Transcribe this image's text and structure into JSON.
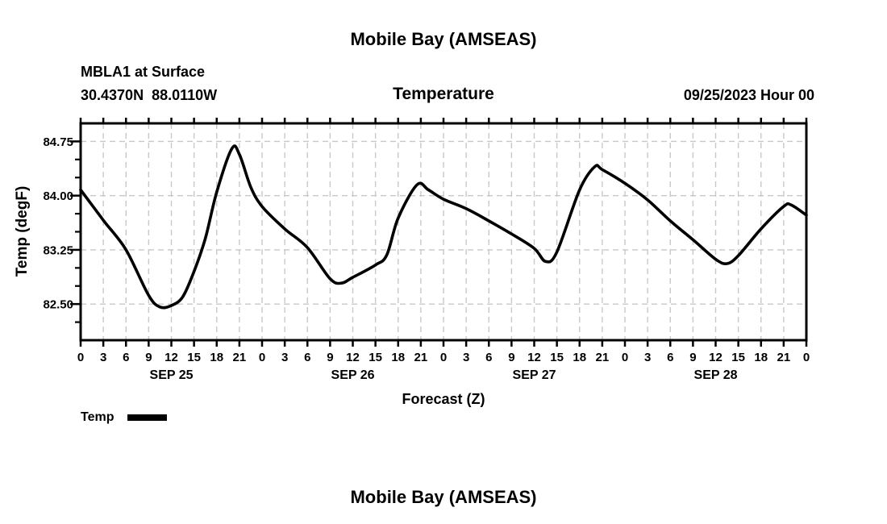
{
  "header": {
    "title": "Mobile Bay (AMSEAS)",
    "station_name": "MBLA1 at Surface",
    "station_coords": "30.4370N  88.0110W",
    "plot_title": "Temperature",
    "run_info": "09/25/2023 Hour 00"
  },
  "legend": {
    "label": "Temp",
    "swatch_color": "#000000"
  },
  "footer": {
    "next_plot_title": "Mobile Bay (AMSEAS)"
  },
  "chart_data": {
    "type": "line",
    "title": "Temperature",
    "xlabel": "Forecast (Z)",
    "ylabel": "Temp (degF)",
    "xlim_hours": [
      0,
      96
    ],
    "ylim": [
      82.0,
      85.0
    ],
    "grid": "dashed",
    "grid_color": "#c8c8c8",
    "line_color": "#000000",
    "axis_color": "#000000",
    "xticks": {
      "hours": [
        0,
        3,
        6,
        9,
        12,
        15,
        18,
        21,
        24,
        27,
        30,
        33,
        36,
        39,
        42,
        45,
        48,
        51,
        54,
        57,
        60,
        63,
        66,
        69,
        72,
        75,
        78,
        81,
        84,
        87,
        90,
        93,
        96
      ],
      "labels": [
        "0",
        "3",
        "6",
        "9",
        "12",
        "15",
        "18",
        "21",
        "0",
        "3",
        "6",
        "9",
        "12",
        "15",
        "18",
        "21",
        "0",
        "3",
        "6",
        "9",
        "12",
        "15",
        "18",
        "21",
        "0",
        "3",
        "6",
        "9",
        "12",
        "15",
        "18",
        "21",
        "0"
      ]
    },
    "day_labels": [
      {
        "label": "SEP 25",
        "hour": 12
      },
      {
        "label": "SEP 26",
        "hour": 36
      },
      {
        "label": "SEP 27",
        "hour": 60
      },
      {
        "label": "SEP 28",
        "hour": 84
      }
    ],
    "yticks_major": {
      "values": [
        82.5,
        83.25,
        84.0,
        84.75
      ],
      "labels": [
        "82.50",
        "83.25",
        "84.00",
        "84.75"
      ]
    },
    "yticks_minor": [
      82.25,
      82.75,
      83.0,
      83.5,
      83.75,
      84.25,
      84.5
    ],
    "legend_position": "bottom-left",
    "series": [
      {
        "name": "Temp",
        "points_hour_degF": [
          [
            0,
            84.08
          ],
          [
            3,
            83.66
          ],
          [
            6,
            83.25
          ],
          [
            9,
            82.62
          ],
          [
            10.5,
            82.46
          ],
          [
            12,
            82.48
          ],
          [
            13.5,
            82.6
          ],
          [
            15,
            82.95
          ],
          [
            16.5,
            83.41
          ],
          [
            18,
            84.05
          ],
          [
            20,
            84.65
          ],
          [
            21,
            84.57
          ],
          [
            22.5,
            84.12
          ],
          [
            24,
            83.85
          ],
          [
            27,
            83.54
          ],
          [
            30,
            83.28
          ],
          [
            33,
            82.85
          ],
          [
            34.5,
            82.79
          ],
          [
            36,
            82.87
          ],
          [
            39,
            83.04
          ],
          [
            40.5,
            83.18
          ],
          [
            42,
            83.69
          ],
          [
            44.5,
            84.15
          ],
          [
            46,
            84.08
          ],
          [
            48,
            83.95
          ],
          [
            51,
            83.82
          ],
          [
            54,
            83.65
          ],
          [
            57,
            83.47
          ],
          [
            60,
            83.27
          ],
          [
            61.5,
            83.09
          ],
          [
            63,
            83.22
          ],
          [
            66,
            84.08
          ],
          [
            68,
            84.4
          ],
          [
            69,
            84.36
          ],
          [
            72,
            84.17
          ],
          [
            75,
            83.94
          ],
          [
            78,
            83.65
          ],
          [
            81,
            83.39
          ],
          [
            84,
            83.12
          ],
          [
            85.5,
            83.06
          ],
          [
            87,
            83.17
          ],
          [
            90,
            83.54
          ],
          [
            93,
            83.85
          ],
          [
            94,
            83.87
          ],
          [
            96,
            83.73
          ]
        ]
      }
    ]
  }
}
